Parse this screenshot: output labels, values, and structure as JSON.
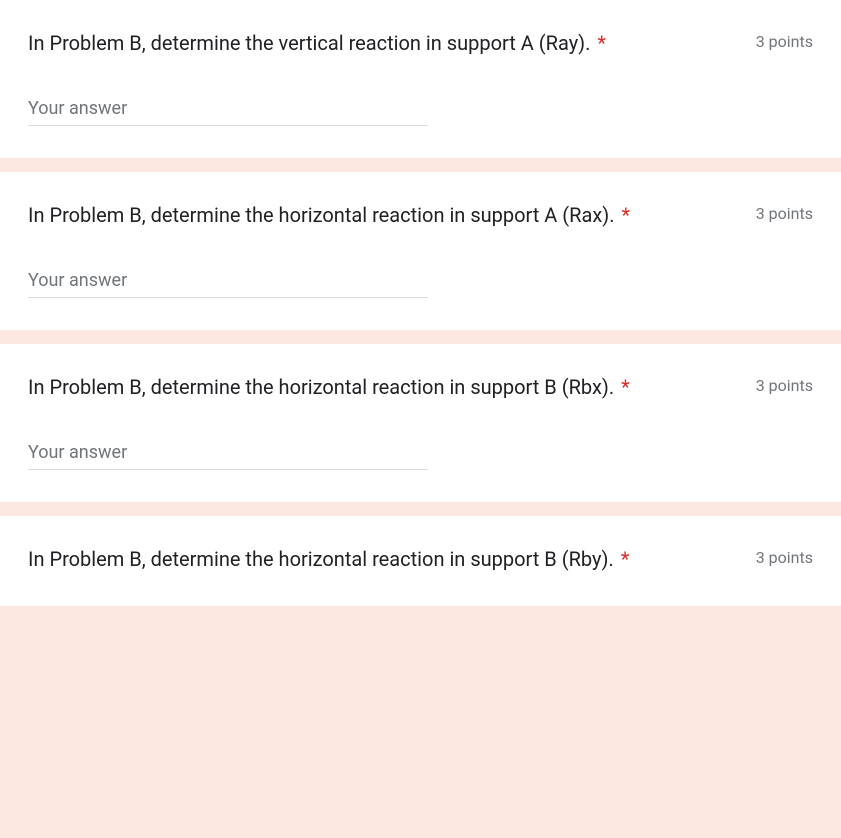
{
  "questions": [
    {
      "text": "In Problem B, determine the vertical reaction in support A (Ray).",
      "required": true,
      "points": "3 points",
      "placeholder": "Your answer",
      "show_input": true
    },
    {
      "text": "In Problem B, determine the horizontal reaction in support A (Rax).",
      "required": true,
      "points": "3 points",
      "placeholder": "Your answer",
      "show_input": true
    },
    {
      "text": "In Problem B, determine the horizontal reaction in support B (Rbx).",
      "required": true,
      "points": "3 points",
      "placeholder": "Your answer",
      "show_input": true
    },
    {
      "text": "In Problem B, determine the horizontal reaction in support B (Rby).",
      "required": true,
      "points": "3 points",
      "placeholder": "Your answer",
      "show_input": false
    }
  ],
  "colors": {
    "page_bg": "#fce8e0",
    "card_bg": "#ffffff",
    "text_primary": "#202124",
    "text_secondary": "#70757a",
    "required": "#d93025",
    "input_border": "#dadce0"
  }
}
